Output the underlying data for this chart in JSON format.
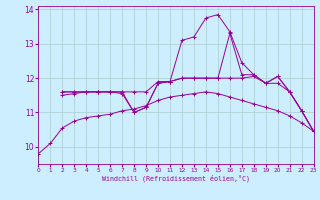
{
  "xlabel": "Windchill (Refroidissement éolien,°C)",
  "background_color": "#cceeff",
  "grid_color": "#aacccc",
  "line_color": "#990099",
  "xmin": 0,
  "xmax": 23,
  "ymin": 9.5,
  "ymax": 14.1,
  "yticks": [
    10,
    11,
    12,
    13,
    14
  ],
  "xticks": [
    0,
    1,
    2,
    3,
    4,
    5,
    6,
    7,
    8,
    9,
    10,
    11,
    12,
    13,
    14,
    15,
    16,
    17,
    18,
    19,
    20,
    21,
    22,
    23
  ],
  "trace_a_x": [
    0,
    1,
    2,
    3,
    4,
    5,
    6,
    7,
    8,
    9,
    10,
    11,
    12,
    13,
    14,
    15,
    16,
    17,
    18,
    19,
    20,
    21,
    22,
    23
  ],
  "trace_a_y": [
    9.8,
    10.1,
    10.55,
    10.75,
    10.85,
    10.9,
    10.95,
    11.05,
    11.1,
    11.2,
    11.35,
    11.45,
    11.5,
    11.55,
    11.6,
    11.55,
    11.45,
    11.35,
    11.25,
    11.15,
    11.05,
    10.9,
    10.7,
    10.45
  ],
  "trace_b_x": [
    2,
    3,
    4,
    5,
    6,
    7,
    8,
    9,
    10,
    11,
    12,
    13,
    14,
    15,
    16,
    17,
    18,
    19,
    20,
    21,
    22,
    23
  ],
  "trace_b_y": [
    11.6,
    11.6,
    11.6,
    11.6,
    11.6,
    11.6,
    11.0,
    11.15,
    11.85,
    11.9,
    12.0,
    12.0,
    12.0,
    12.0,
    12.0,
    12.0,
    12.05,
    11.85,
    12.05,
    11.6,
    11.05,
    10.45
  ],
  "trace_c_x": [
    2,
    3,
    4,
    5,
    6,
    7,
    8,
    9,
    10,
    11,
    12,
    13,
    14,
    15,
    16,
    17,
    18,
    19,
    20,
    21,
    22,
    23
  ],
  "trace_c_y": [
    11.5,
    11.55,
    11.6,
    11.6,
    11.6,
    11.55,
    11.0,
    11.15,
    11.85,
    11.9,
    13.1,
    13.2,
    13.75,
    13.85,
    13.35,
    12.45,
    12.1,
    11.85,
    12.05,
    11.6,
    11.05,
    10.45
  ],
  "trace_d_x": [
    2,
    3,
    4,
    5,
    6,
    7,
    8,
    9,
    10,
    11,
    12,
    13,
    14,
    15,
    16,
    17,
    18,
    19,
    20,
    21,
    22,
    23
  ],
  "trace_d_y": [
    11.6,
    11.6,
    11.6,
    11.6,
    11.6,
    11.6,
    11.6,
    11.6,
    11.9,
    11.9,
    12.0,
    12.0,
    12.0,
    12.0,
    13.3,
    12.1,
    12.1,
    11.85,
    11.85,
    11.6,
    11.05,
    10.45
  ]
}
